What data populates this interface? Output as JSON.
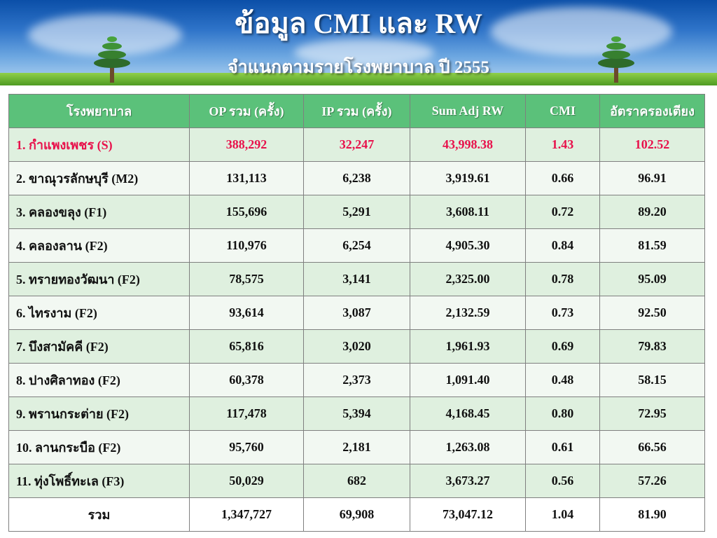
{
  "header": {
    "title": "ข้อมูล CMI และ RW",
    "subtitle": "จำแนกตามรายโรงพยาบาล ปี 2555"
  },
  "table": {
    "columns": [
      "โรงพยาบาล",
      "OP รวม (ครั้ง)",
      "IP รวม (ครั้ง)",
      "Sum Adj RW",
      "CMI",
      "อัตราครองเตียง"
    ],
    "rows": [
      {
        "name": "1. กำแพงเพชร (S)",
        "op": "388,292",
        "ip": "32,247",
        "rw": "43,998.38",
        "cmi": "1.43",
        "bed": "102.52"
      },
      {
        "name": "2. ขาณุวรลักษบุรี (M2)",
        "op": "131,113",
        "ip": "6,238",
        "rw": "3,919.61",
        "cmi": "0.66",
        "bed": "96.91"
      },
      {
        "name": "3. คลองขลุง (F1)",
        "op": "155,696",
        "ip": "5,291",
        "rw": "3,608.11",
        "cmi": "0.72",
        "bed": "89.20"
      },
      {
        "name": "4. คลองลาน (F2)",
        "op": "110,976",
        "ip": "6,254",
        "rw": "4,905.30",
        "cmi": "0.84",
        "bed": "81.59"
      },
      {
        "name": "5. ทรายทองวัฒนา (F2)",
        "op": "78,575",
        "ip": "3,141",
        "rw": "2,325.00",
        "cmi": "0.78",
        "bed": "95.09"
      },
      {
        "name": "6. ไทรงาม (F2)",
        "op": "93,614",
        "ip": "3,087",
        "rw": "2,132.59",
        "cmi": "0.73",
        "bed": "92.50"
      },
      {
        "name": "7. บึงสามัคคี (F2)",
        "op": "65,816",
        "ip": "3,020",
        "rw": "1,961.93",
        "cmi": "0.69",
        "bed": "79.83"
      },
      {
        "name": "8. ปางศิลาทอง (F2)",
        "op": "60,378",
        "ip": "2,373",
        "rw": "1,091.40",
        "cmi": "0.48",
        "bed": "58.15"
      },
      {
        "name": "9. พรานกระต่าย (F2)",
        "op": "117,478",
        "ip": "5,394",
        "rw": "4,168.45",
        "cmi": "0.80",
        "bed": "72.95"
      },
      {
        "name": "10. ลานกระบือ (F2)",
        "op": "95,760",
        "ip": "2,181",
        "rw": "1,263.08",
        "cmi": "0.61",
        "bed": "66.56"
      },
      {
        "name": "11. ทุ่งโพธิ์ทะเล (F3)",
        "op": "50,029",
        "ip": "682",
        "rw": "3,673.27",
        "cmi": "0.56",
        "bed": "57.26"
      }
    ],
    "total": {
      "name": "รวม",
      "op": "1,347,727",
      "ip": "69,908",
      "rw": "73,047.12",
      "cmi": "1.04",
      "bed": "81.90"
    }
  },
  "colors": {
    "header_green": "#5bc17a",
    "highlight_text": "#e8114b",
    "row_odd": "#dff0df",
    "row_even": "#f2f8f2"
  }
}
